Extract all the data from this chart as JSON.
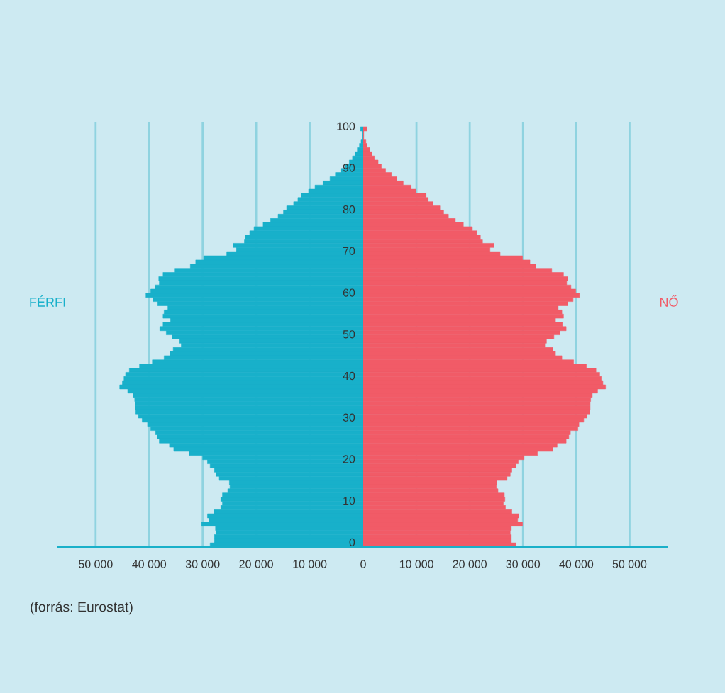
{
  "chart_data": [
    {
      "type": "bar",
      "orientation": "horizontal",
      "categories": [
        "100",
        null,
        null,
        null,
        null,
        null,
        null,
        null,
        null,
        null,
        "90",
        null,
        null,
        null,
        null,
        null,
        null,
        null,
        null,
        null,
        "80",
        null,
        null,
        null,
        null,
        null,
        null,
        null,
        null,
        null,
        "70",
        null,
        null,
        null,
        null,
        null,
        null,
        null,
        null,
        null,
        "60",
        null,
        null,
        null,
        null,
        null,
        null,
        null,
        null,
        null,
        "50",
        null,
        null,
        null,
        null,
        null,
        null,
        null,
        null,
        null,
        "40",
        null,
        null,
        null,
        null,
        null,
        null,
        null,
        null,
        null,
        "30",
        null,
        null,
        null,
        null,
        null,
        null,
        null,
        null,
        null,
        "20",
        null,
        null,
        null,
        null,
        null,
        null,
        null,
        null,
        null,
        "10",
        null,
        null,
        null,
        null,
        null,
        null,
        null,
        null,
        null,
        "0"
      ],
      "series": [
        {
          "name": "FÉRFI",
          "color": "#18b0ca",
          "values": [
            500,
            100,
            100,
            400,
            700,
            1100,
            1500,
            2000,
            2600,
            3400,
            4200,
            5200,
            6200,
            7500,
            9000,
            10200,
            11600,
            12200,
            13000,
            14300,
            14900,
            15900,
            17300,
            18700,
            20400,
            21200,
            22000,
            22200,
            24300,
            23700,
            25500,
            29800,
            31300,
            32300,
            35300,
            37400,
            38200,
            38100,
            38900,
            39700,
            40600,
            39300,
            38400,
            36500,
            37200,
            37400,
            36000,
            37400,
            38000,
            36800,
            35700,
            34300,
            34000,
            35500,
            36100,
            37200,
            39400,
            41800,
            43700,
            44400,
            44700,
            45000,
            45500,
            44000,
            43000,
            42700,
            42600,
            42600,
            42500,
            42000,
            41300,
            40300,
            39700,
            38800,
            38500,
            38100,
            36200,
            35400,
            32500,
            30000,
            29100,
            28600,
            27800,
            27500,
            26900,
            25000,
            24900,
            25300,
            26300,
            26600,
            26300,
            26600,
            27900,
            29100,
            28800,
            30200,
            27600,
            27500,
            27800,
            27800,
            28600
          ]
        }
      ],
      "xlim": [
        57000,
        0
      ],
      "xticks": [
        {
          "value": 50000,
          "label": "50 000"
        },
        {
          "value": 40000,
          "label": "40 000"
        },
        {
          "value": 30000,
          "label": "30 000"
        },
        {
          "value": 20000,
          "label": "20 000"
        },
        {
          "value": 10000,
          "label": "10 000"
        }
      ],
      "grid": "x",
      "annotations": [
        "(forrás: Eurostat)"
      ]
    },
    {
      "type": "bar",
      "orientation": "horizontal",
      "categories": [
        "100",
        null,
        null,
        null,
        null,
        null,
        null,
        null,
        null,
        null,
        "90",
        null,
        null,
        null,
        null,
        null,
        null,
        null,
        null,
        null,
        "80",
        null,
        null,
        null,
        null,
        null,
        null,
        null,
        null,
        null,
        "70",
        null,
        null,
        null,
        null,
        null,
        null,
        null,
        null,
        null,
        "60",
        null,
        null,
        null,
        null,
        null,
        null,
        null,
        null,
        null,
        "50",
        null,
        null,
        null,
        null,
        null,
        null,
        null,
        null,
        null,
        "40",
        null,
        null,
        null,
        null,
        null,
        null,
        null,
        null,
        null,
        "30",
        null,
        null,
        null,
        null,
        null,
        null,
        null,
        null,
        null,
        "20",
        null,
        null,
        null,
        null,
        null,
        null,
        null,
        null,
        null,
        "10",
        null,
        null,
        null,
        null,
        null,
        null,
        null,
        null,
        null,
        "0"
      ],
      "tick_labels": "x",
      "series": [
        {
          "name": "NŐ",
          "color": "#f15b67",
          "values": [
            700,
            100,
            100,
            500,
            700,
            1200,
            1600,
            2100,
            2800,
            3400,
            4200,
            5300,
            6300,
            7500,
            9000,
            9900,
            11800,
            12200,
            13100,
            14400,
            15100,
            16000,
            17300,
            18800,
            20500,
            21300,
            22000,
            22400,
            24500,
            23800,
            25700,
            29900,
            31300,
            32400,
            35400,
            37600,
            38400,
            38200,
            39000,
            39900,
            40600,
            39400,
            38400,
            36600,
            37300,
            37600,
            36100,
            37400,
            38100,
            36900,
            35800,
            34400,
            34100,
            35600,
            36100,
            37300,
            39500,
            41900,
            43700,
            44400,
            44700,
            45000,
            45500,
            44000,
            43000,
            42700,
            42600,
            42600,
            42500,
            42000,
            41400,
            40500,
            40300,
            38900,
            38600,
            38100,
            36400,
            35600,
            32700,
            30200,
            29100,
            28700,
            27900,
            27600,
            27000,
            25100,
            25000,
            25300,
            26500,
            26600,
            26300,
            26700,
            27900,
            29200,
            29000,
            29900,
            27800,
            27600,
            27800,
            27800,
            28700
          ]
        }
      ],
      "xlim": [
        0,
        57000
      ],
      "xticks": [
        0,
        {
          "value": 10000,
          "label": "10 000"
        },
        {
          "value": 20000,
          "label": "20 000"
        },
        {
          "value": 30000,
          "label": "30 000"
        },
        {
          "value": 40000,
          "label": "40 000"
        },
        {
          "value": 50000,
          "label": "50 000"
        }
      ],
      "grid": "x"
    }
  ]
}
